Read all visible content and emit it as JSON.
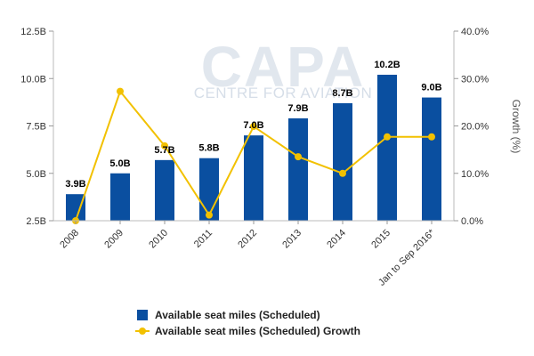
{
  "chart_data": {
    "type": "bar",
    "categories": [
      "2008",
      "2009",
      "2010",
      "2011",
      "2012",
      "2013",
      "2014",
      "2015",
      "Jan to Sep 2016*"
    ],
    "series": [
      {
        "name": "Available seat miles (Scheduled)",
        "kind": "bar",
        "axis": "left",
        "color": "#0a4fa0",
        "values": [
          3.9,
          5.0,
          5.7,
          5.8,
          7.0,
          7.9,
          8.7,
          10.2,
          9.0
        ],
        "labels": [
          "3.9B",
          "5.0B",
          "5.7B",
          "5.8B",
          "7.0B",
          "7.9B",
          "8.7B",
          "10.2B",
          "9.0B"
        ]
      },
      {
        "name": "Available seat miles (Scheduled) Growth",
        "kind": "line",
        "axis": "right",
        "color": "#f2c100",
        "values": [
          0.0,
          27.3,
          15.8,
          1.2,
          19.9,
          13.5,
          10.0,
          17.7,
          17.7
        ]
      }
    ],
    "y_left": {
      "ylim": [
        2.5,
        12.5
      ],
      "ticks": [
        2.5,
        5.0,
        7.5,
        10.0,
        12.5
      ],
      "tick_labels": [
        "2.5B",
        "5.0B",
        "7.5B",
        "10.0B",
        "12.5B"
      ]
    },
    "y_right": {
      "label": "Growth (%)",
      "ylim": [
        0,
        40
      ],
      "ticks": [
        0,
        10,
        20,
        30,
        40
      ],
      "tick_labels": [
        "0.0%",
        "10.0%",
        "20.0%",
        "30.0%",
        "40.0%"
      ]
    },
    "grid": false,
    "legend_position": "bottom",
    "watermark": {
      "line1": "CAPA",
      "line2": "CENTRE FOR AVIATION"
    }
  }
}
